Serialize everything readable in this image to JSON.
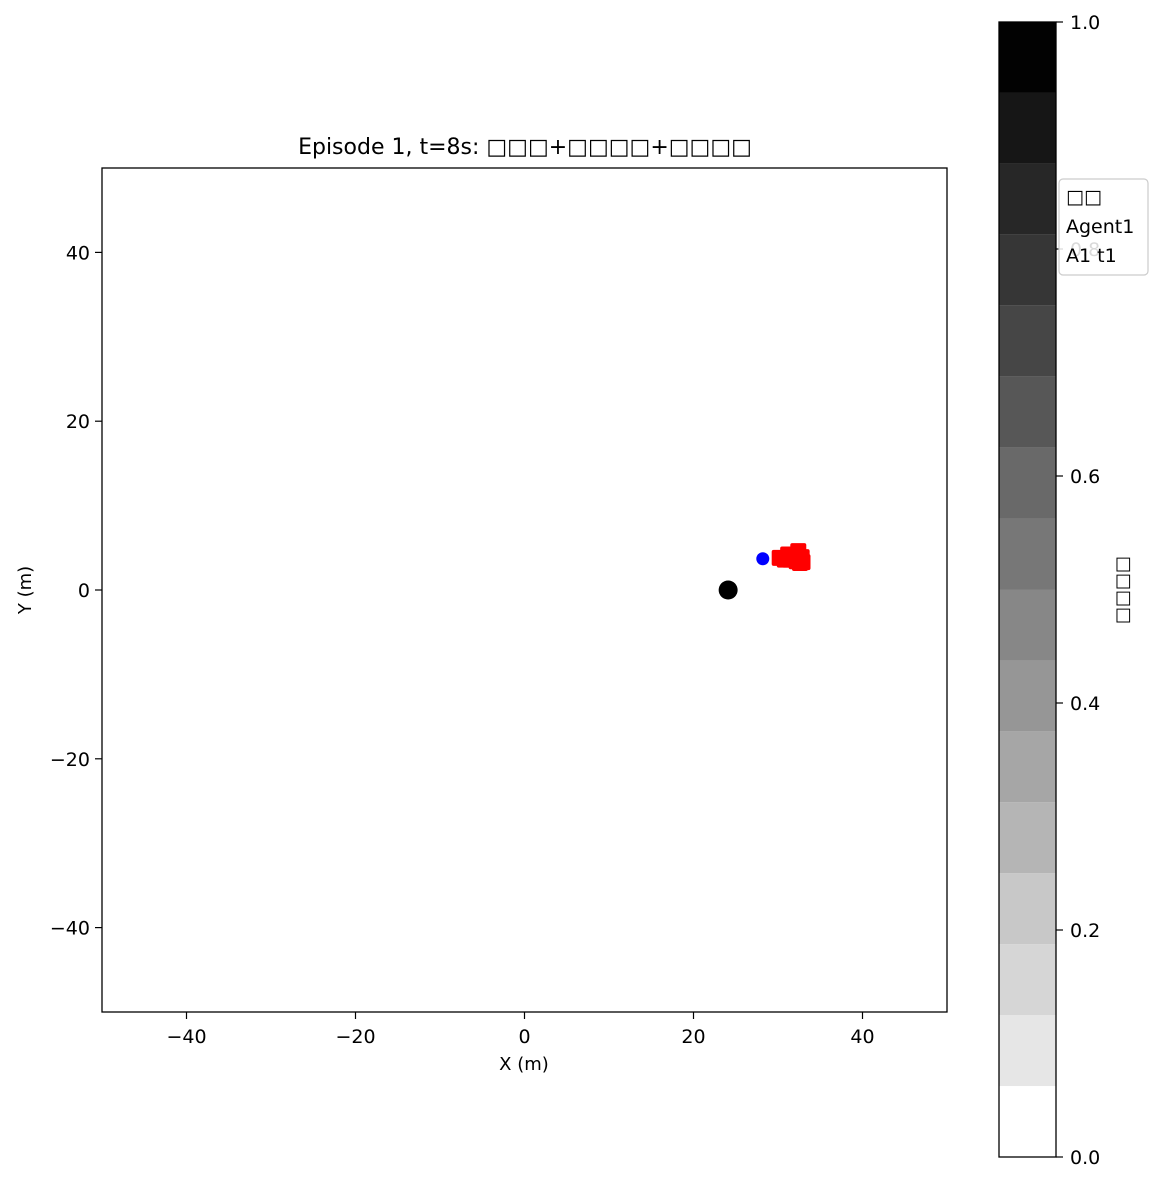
{
  "chart_data": [
    {
      "type": "scatter",
      "title": "Episode 1, t=8s: □□□+□□□□+□□□□",
      "xlabel": "X (m)",
      "ylabel": "Y (m)",
      "xlim": [
        -50,
        50
      ],
      "ylim": [
        -50,
        50
      ],
      "xticks": [
        -40,
        -20,
        0,
        20,
        40
      ],
      "yticks": [
        -40,
        -20,
        0,
        20,
        40
      ],
      "xtick_labels": [
        "−40",
        "−20",
        "0",
        "20",
        "40"
      ],
      "ytick_labels": [
        "−40",
        "−20",
        "0",
        "20",
        "40"
      ],
      "grid": false,
      "series": [
        {
          "name": "",
          "marker": "circle",
          "color": "#000000",
          "points": [
            {
              "x": 24.1,
              "y": 0.0
            }
          ]
        },
        {
          "name": "Agent1",
          "marker": "circle",
          "color": "#0000ff",
          "points": [
            {
              "x": 28.2,
              "y": 3.7
            }
          ]
        },
        {
          "name": "A1 t1",
          "marker": "square",
          "color": "#ff0000",
          "points": [
            {
              "x": 30.2,
              "y": 3.8
            },
            {
              "x": 30.8,
              "y": 3.6
            },
            {
              "x": 31.2,
              "y": 4.2
            },
            {
              "x": 31.4,
              "y": 3.6
            },
            {
              "x": 31.8,
              "y": 4.0
            },
            {
              "x": 32.2,
              "y": 3.4
            },
            {
              "x": 32.4,
              "y": 4.6
            },
            {
              "x": 32.6,
              "y": 3.2
            },
            {
              "x": 32.8,
              "y": 3.9
            },
            {
              "x": 32.9,
              "y": 3.3
            }
          ]
        }
      ],
      "legend": {
        "placement": "upper-right-outside",
        "title": "□□",
        "entries": [
          "Agent1",
          "A1 t1"
        ]
      }
    },
    {
      "type": "colorbar",
      "label": "□□□□",
      "range": [
        0,
        1
      ],
      "levels": 16,
      "colors": [
        "#ffffff",
        "#e6e6e6",
        "#d6d6d6",
        "#c8c8c8",
        "#b5b5b5",
        "#a6a6a6",
        "#969696",
        "#878787",
        "#777777",
        "#696969",
        "#575757",
        "#464646",
        "#363636",
        "#272727",
        "#161616",
        "#020202"
      ],
      "ticks": [
        0.0,
        0.2,
        0.4,
        0.6,
        0.8,
        1.0
      ],
      "tick_labels": [
        "0.0",
        "0.2",
        "0.4",
        "0.6",
        "0.8",
        "1.0"
      ]
    }
  ]
}
